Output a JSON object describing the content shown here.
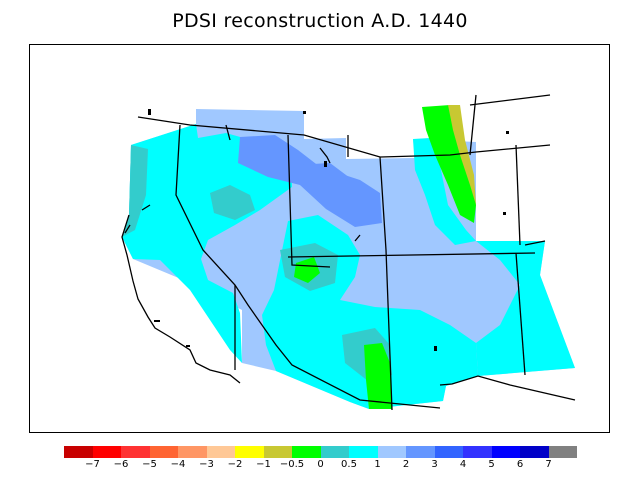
{
  "title": "PDSI reconstruction A.D. 1440",
  "legend": {
    "colors": [
      "#c80000",
      "#ff0000",
      "#ff3232",
      "#ff6432",
      "#ff9664",
      "#ffc896",
      "#ffff00",
      "#c8c832",
      "#00ff00",
      "#33cccc",
      "#00ffff",
      "#a0c8ff",
      "#6496ff",
      "#3264ff",
      "#3232ff",
      "#0000ff",
      "#0000c8",
      "#808080"
    ],
    "ticks": [
      "−7",
      "−6",
      "−5",
      "−4",
      "−3",
      "−2",
      "−1",
      "−0.5",
      "0",
      "0.5",
      "1",
      "2",
      "3",
      "4",
      "5",
      "6",
      "7"
    ]
  }
}
